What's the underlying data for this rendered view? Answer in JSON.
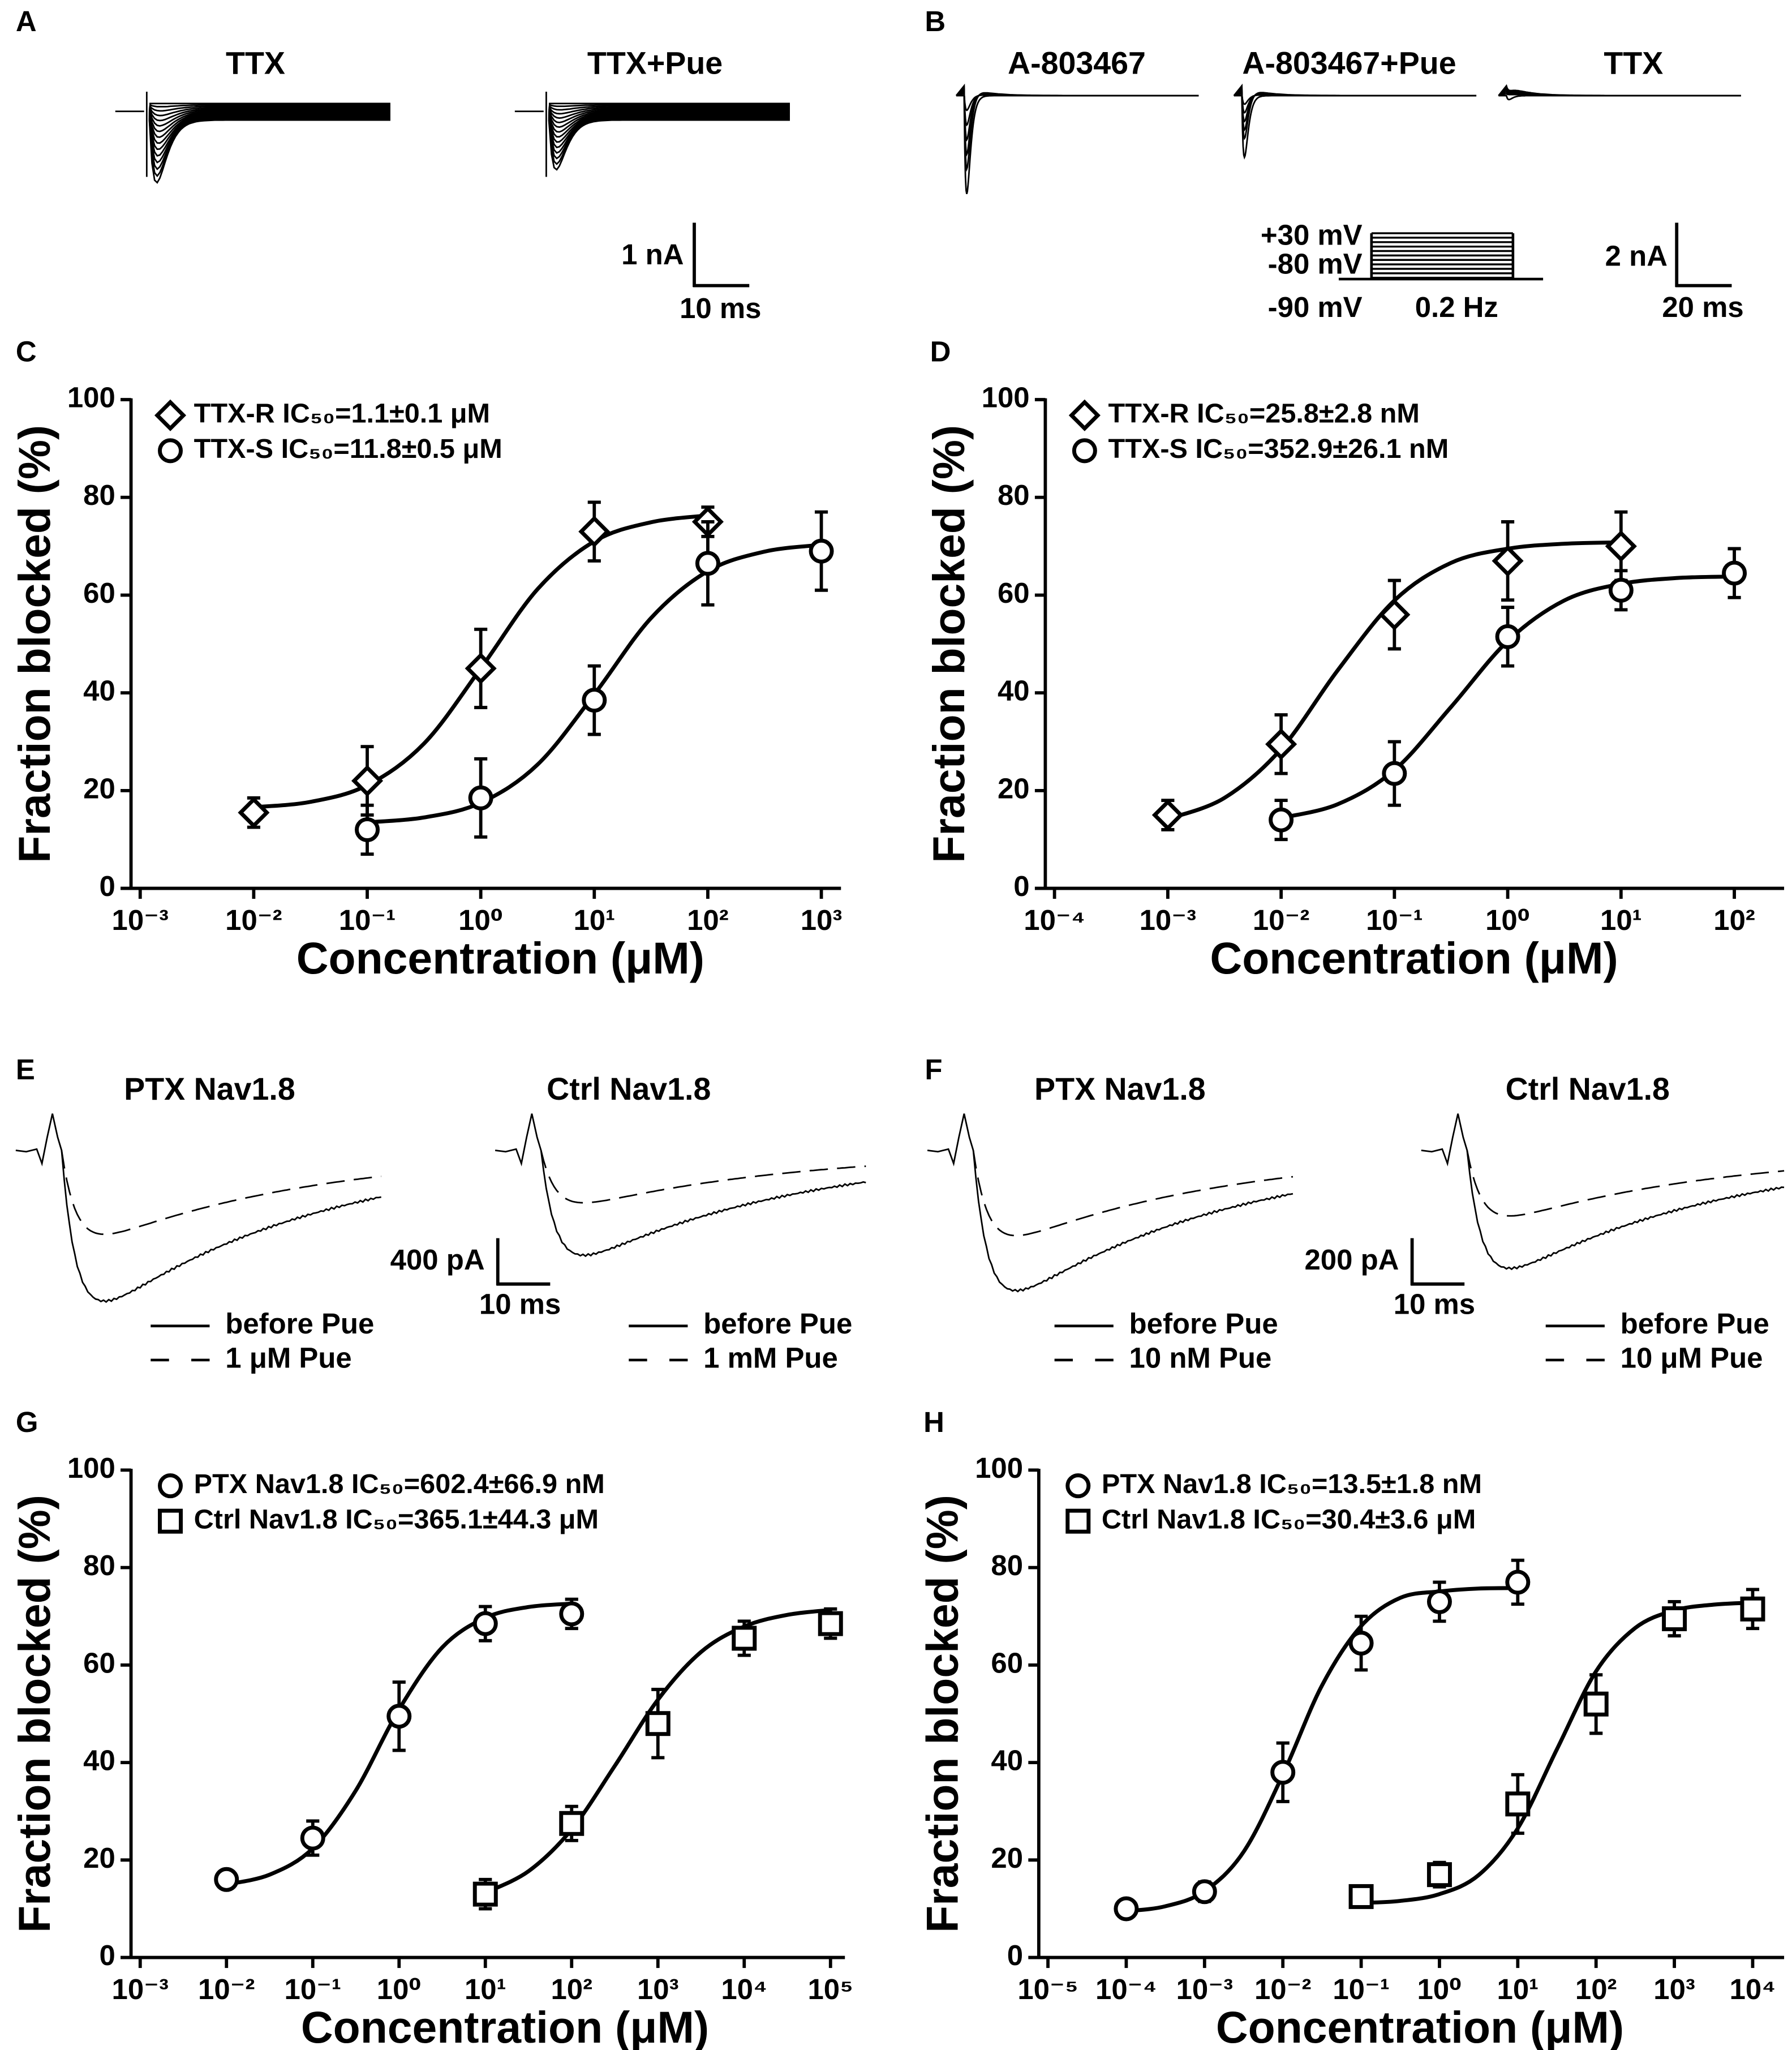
{
  "trace_panels": [
    {
      "label": "A",
      "titles": [
        "TTX",
        "TTX+Pue"
      ],
      "scale_y": "1 nA",
      "scale_x": "10 ms"
    },
    {
      "label": "B",
      "titles": [
        "A-803467",
        "A-803467+Pue",
        "TTX"
      ],
      "protocol": [
        "+30 mV",
        "-80 mV",
        "-90 mV",
        "0.2 Hz"
      ],
      "scale_y": "2 nA",
      "scale_x": "20 ms"
    },
    {
      "label": "E",
      "titles": [
        "PTX Nav1.8",
        "Ctrl Nav1.8"
      ],
      "scale_y": "400 pA",
      "scale_x": "10 ms",
      "legends": [
        [
          "before Pue",
          "1 μM Pue"
        ],
        [
          "before Pue",
          "1 mM Pue"
        ]
      ]
    },
    {
      "label": "F",
      "titles": [
        "PTX Nav1.8",
        "Ctrl Nav1.8"
      ],
      "scale_y": "200 pA",
      "scale_x": "10 ms",
      "legends": [
        [
          "before Pue",
          "10 nM Pue"
        ],
        [
          "before Pue",
          "10 μM Pue"
        ]
      ]
    }
  ],
  "chart_data": [
    {
      "type": "scatter",
      "panel": "C",
      "xlabel": "Concentration (μM)",
      "ylabel": "Fraction blocked (%)",
      "xscale": "log",
      "legend_position": "upper left",
      "xlim": [
        0.001,
        1000
      ],
      "xticks": [
        {
          "value": 0.001,
          "label": "10⁻³"
        },
        {
          "value": 0.01,
          "label": "10⁻²"
        },
        {
          "value": 0.1,
          "label": "10⁻¹"
        },
        {
          "value": 1,
          "label": "10⁰"
        },
        {
          "value": 10,
          "label": "10¹"
        },
        {
          "value": 100,
          "label": "10²"
        },
        {
          "value": 1000,
          "label": "10³"
        }
      ],
      "ylim": [
        0,
        100
      ],
      "yticks": [
        0,
        20,
        40,
        60,
        80,
        100
      ],
      "series": [
        {
          "name": "TTX-R  IC₅₀=1.1±0.1 μM",
          "marker": "diamond",
          "color": "#000000",
          "x": [
            0.01,
            0.1,
            1,
            10,
            100
          ],
          "values": [
            15.5,
            22,
            45,
            73,
            75
          ],
          "errors": [
            3,
            7,
            8,
            6,
            3
          ],
          "fit_x": [
            0.01,
            0.0316,
            0.1,
            0.316,
            1,
            3.16,
            10,
            31.6,
            100
          ],
          "fit_values": [
            16.6,
            17.7,
            21.1,
            29.6,
            45.0,
            61.2,
            71.0,
            74.9,
            76.3
          ]
        },
        {
          "name": "TTX-S  IC₅₀=11.8±0.5 μM",
          "marker": "circle",
          "color": "#000000",
          "x": [
            0.1,
            1,
            10,
            100,
            1000
          ],
          "values": [
            12,
            18.5,
            38.5,
            66.5,
            69
          ],
          "errors": [
            5,
            8,
            7,
            8.5,
            8
          ],
          "fit_x": [
            0.1,
            0.316,
            1,
            3.16,
            10,
            31.6,
            100,
            316,
            1000
          ],
          "fit_values": [
            13.5,
            14.5,
            17.5,
            25.3,
            39.7,
            55.3,
            64.9,
            68.9,
            70.3
          ]
        }
      ]
    },
    {
      "type": "scatter",
      "panel": "D",
      "xlabel": "Concentration (μM)",
      "ylabel": "Fraction blocked (%)",
      "xscale": "log",
      "legend_position": "upper left",
      "xlim": [
        0.0001,
        100
      ],
      "xticks": [
        {
          "value": 0.0001,
          "label": "10⁻⁴"
        },
        {
          "value": 0.001,
          "label": "10⁻³"
        },
        {
          "value": 0.01,
          "label": "10⁻²"
        },
        {
          "value": 0.1,
          "label": "10⁻¹"
        },
        {
          "value": 1,
          "label": "10⁰"
        },
        {
          "value": 10,
          "label": "10¹"
        },
        {
          "value": 100,
          "label": "10²"
        }
      ],
      "ylim": [
        0,
        100
      ],
      "yticks": [
        0,
        20,
        40,
        60,
        80,
        100
      ],
      "series": [
        {
          "name": "TTX-R  IC₅₀=25.8±2.8 nM",
          "marker": "diamond",
          "color": "#000000",
          "x": [
            0.001,
            0.01,
            0.1,
            1,
            10
          ],
          "values": [
            15,
            29.5,
            56,
            67,
            70
          ],
          "errors": [
            3,
            6,
            7,
            8,
            7
          ],
          "fit_x": [
            0.001,
            0.00316,
            0.01,
            0.0316,
            0.1,
            0.316,
            1,
            3.16,
            10
          ],
          "fit_values": [
            14.2,
            18.5,
            28.5,
            44.6,
            58.9,
            66.6,
            69.5,
            70.5,
            70.8
          ]
        },
        {
          "name": "TTX-S  IC₅₀=352.9±26.1 nM",
          "marker": "circle",
          "color": "#000000",
          "x": [
            0.01,
            0.1,
            1,
            10,
            100
          ],
          "values": [
            14,
            23.5,
            51.5,
            61,
            64.5
          ],
          "errors": [
            4,
            6.5,
            6,
            4,
            5
          ],
          "fit_x": [
            0.01,
            0.0316,
            0.1,
            0.316,
            1,
            3.16,
            10,
            31.6,
            100
          ],
          "fit_values": [
            14.4,
            17.2,
            24.2,
            37.1,
            50.6,
            58.9,
            62.3,
            63.5,
            63.8
          ]
        }
      ]
    },
    {
      "type": "scatter",
      "panel": "G",
      "xlabel": "Concentration (μM)",
      "ylabel": "Fraction blocked (%)",
      "xscale": "log",
      "legend_position": "upper left",
      "xlim": [
        0.001,
        100000
      ],
      "xticks": [
        {
          "value": 0.001,
          "label": "10⁻³"
        },
        {
          "value": 0.01,
          "label": "10⁻²"
        },
        {
          "value": 0.1,
          "label": "10⁻¹"
        },
        {
          "value": 1,
          "label": "10⁰"
        },
        {
          "value": 10,
          "label": "10¹"
        },
        {
          "value": 100,
          "label": "10²"
        },
        {
          "value": 1000,
          "label": "10³"
        },
        {
          "value": 10000,
          "label": "10⁴"
        },
        {
          "value": 100000,
          "label": "10⁵"
        }
      ],
      "ylim": [
        0,
        100
      ],
      "yticks": [
        0,
        20,
        40,
        60,
        80,
        100
      ],
      "series": [
        {
          "name": "PTX Nav1.8 IC₅₀=602.4±66.9 nM",
          "marker": "circle",
          "color": "#000000",
          "x": [
            0.01,
            0.1,
            1,
            10,
            100
          ],
          "values": [
            16,
            24.5,
            49.5,
            68.5,
            70.5
          ],
          "errors": [
            1,
            3.5,
            7,
            3.5,
            3
          ],
          "fit_x": [
            0.01,
            0.0316,
            0.1,
            0.316,
            1,
            3.16,
            10,
            31.6,
            100
          ],
          "fit_values": [
            15.0,
            17.0,
            22.4,
            34.3,
            50.9,
            63.6,
            69.7,
            71.9,
            72.6
          ]
        },
        {
          "name": "Ctrl  Nav1.8 IC₅₀=365.1±44.3 μM",
          "marker": "square",
          "color": "#000000",
          "x": [
            10,
            100,
            1000,
            10000,
            100000
          ],
          "values": [
            13,
            27.5,
            48,
            65.5,
            68.5
          ],
          "errors": [
            3,
            3.5,
            7,
            3.5,
            3
          ],
          "fit_x": [
            10,
            31.6,
            100,
            316,
            1000,
            3162,
            10000,
            31623,
            100000
          ],
          "fit_values": [
            13.3,
            17.7,
            26.3,
            39.3,
            52.9,
            62.7,
            67.9,
            70.3,
            71.3
          ]
        }
      ]
    },
    {
      "type": "scatter",
      "panel": "H",
      "xlabel": "Concentration (μM)",
      "ylabel": "Fraction blocked (%)",
      "xscale": "log",
      "legend_position": "upper left",
      "xlim": [
        1e-05,
        10000
      ],
      "xticks": [
        {
          "value": 1e-05,
          "label": "10⁻⁵"
        },
        {
          "value": 0.0001,
          "label": "10⁻⁴"
        },
        {
          "value": 0.001,
          "label": "10⁻³"
        },
        {
          "value": 0.01,
          "label": "10⁻²"
        },
        {
          "value": 0.1,
          "label": "10⁻¹"
        },
        {
          "value": 1,
          "label": "10⁰"
        },
        {
          "value": 10,
          "label": "10¹"
        },
        {
          "value": 100,
          "label": "10²"
        },
        {
          "value": 1000,
          "label": "10³"
        },
        {
          "value": 10000,
          "label": "10⁴"
        }
      ],
      "ylim": [
        0,
        100
      ],
      "yticks": [
        0,
        20,
        40,
        60,
        80,
        100
      ],
      "series": [
        {
          "name": "PTX Nav1.8 IC₅₀=13.5±1.8 nM",
          "marker": "circle",
          "color": "#000000",
          "x": [
            0.0001,
            0.001,
            0.01,
            0.1,
            1,
            10
          ],
          "values": [
            10,
            13.5,
            38,
            64.5,
            73,
            77
          ],
          "errors": [
            1,
            2,
            6,
            5.5,
            4,
            4.5
          ],
          "fit_x": [
            0.0001,
            0.000316,
            0.001,
            0.00316,
            0.01,
            0.0316,
            0.1,
            0.316,
            1,
            3.16,
            10
          ],
          "fit_values": [
            9.5,
            10.5,
            13.6,
            21.7,
            37.5,
            55.8,
            68.0,
            73.8,
            75.1,
            75.7,
            75.8
          ]
        },
        {
          "name": "Ctrl  Nav1.8 IC₅₀=30.4±3.6 μM",
          "marker": "square",
          "color": "#000000",
          "x": [
            0.1,
            1,
            10,
            100,
            1000,
            10000
          ],
          "values": [
            12.5,
            17,
            31.5,
            52,
            69.5,
            71.5
          ],
          "errors": [
            2,
            2.5,
            6,
            6,
            3.5,
            4
          ],
          "fit_x": [
            0.1,
            0.316,
            1,
            3.16,
            10,
            31.6,
            100,
            316,
            1000,
            3162,
            10000
          ],
          "fit_values": [
            11.2,
            11.6,
            13.0,
            16.9,
            26.5,
            42.7,
            58.7,
            67.6,
            71.2,
            72.4,
            72.8
          ]
        }
      ]
    }
  ]
}
